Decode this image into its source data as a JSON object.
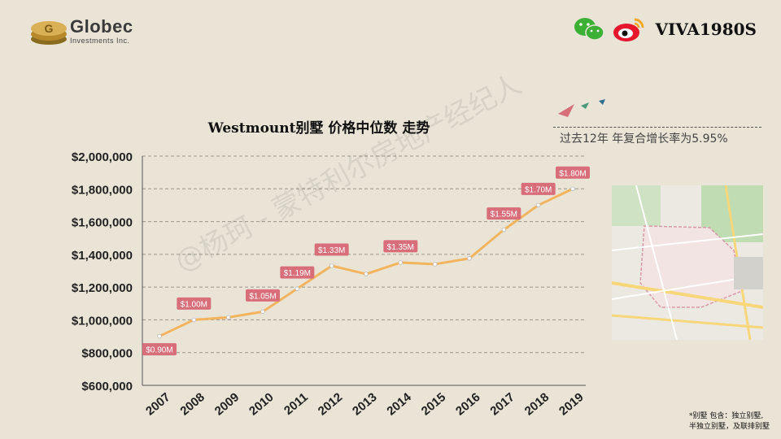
{
  "header": {
    "logo_name": "Globec",
    "logo_sub": "Investments Inc.",
    "brand": "VIVA1980S",
    "icons": [
      "coin-stack-icon",
      "wechat-icon",
      "weibo-icon",
      "paper-plane-icon"
    ]
  },
  "growth_text": "过去12年 年复合增长率为5.95%",
  "watermark": "@杨珂 - 蒙特利尔房地产经纪人",
  "note": [
    "*别墅 包含：独立别墅,",
    "半独立别墅，及联排别墅"
  ],
  "colors": {
    "line": "#f2b45e",
    "label_bg": "#d76e7a",
    "background": "#e9e4d6"
  },
  "chart_data": {
    "type": "line",
    "title": "Westmount别墅 价格中位数 走势",
    "x": [
      "2007",
      "2008",
      "2009",
      "2010",
      "2011",
      "2012",
      "2013",
      "2014",
      "2015",
      "2016",
      "2017",
      "2018",
      "2019"
    ],
    "y_ticks": [
      "$600,000",
      "$800,000",
      "$1,000,000",
      "$1,200,000",
      "$1,400,000",
      "$1,600,000",
      "$1,800,000",
      "$2,000,000"
    ],
    "ylim": [
      600000,
      2000000
    ],
    "grid": true,
    "series": [
      {
        "values": [
          900000,
          1000000,
          1015000,
          1050000,
          1190000,
          1330000,
          1280000,
          1350000,
          1340000,
          1375000,
          1550000,
          1700000,
          1800000
        ]
      }
    ],
    "data_labels": [
      {
        "index": 0,
        "text": "$0.90M"
      },
      {
        "index": 1,
        "text": "$1.00M"
      },
      {
        "index": 3,
        "text": "$1.05M"
      },
      {
        "index": 4,
        "text": "$1.19M"
      },
      {
        "index": 5,
        "text": "$1.33M"
      },
      {
        "index": 7,
        "text": "$1.35M"
      },
      {
        "index": 10,
        "text": "$1.55M"
      },
      {
        "index": 11,
        "text": "$1.70M"
      },
      {
        "index": 12,
        "text": "$1.80M"
      }
    ]
  }
}
